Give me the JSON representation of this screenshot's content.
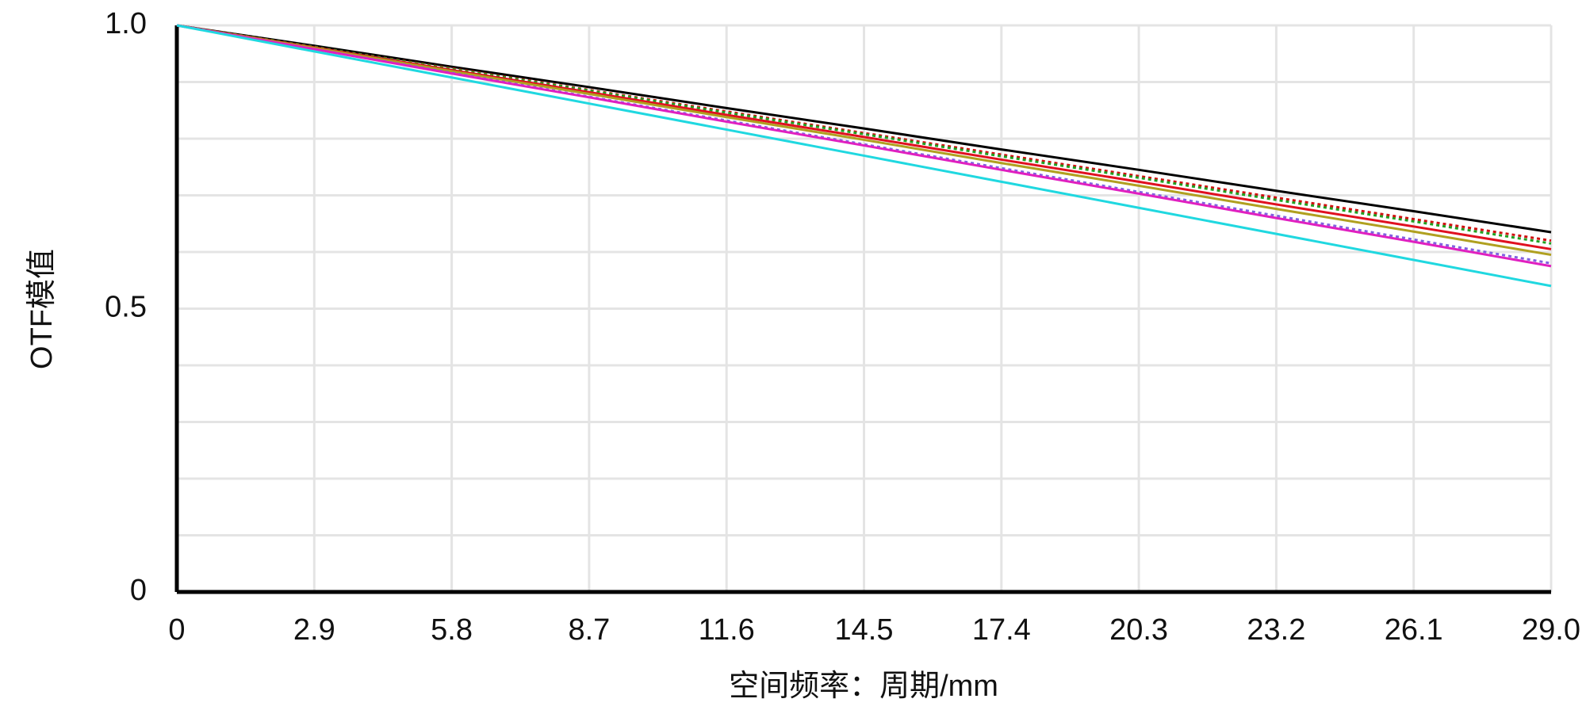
{
  "chart_data": {
    "type": "line",
    "x_label": "空间频率：周期/mm",
    "y_label": "OTF模值",
    "x": [
      0,
      2.9,
      5.8,
      8.7,
      11.6,
      14.5,
      17.4,
      20.3,
      23.2,
      26.1,
      29
    ],
    "series": [
      {
        "color": "#000000",
        "dash": false,
        "values": [
          1,
          0.964,
          0.927,
          0.891,
          0.854,
          0.818,
          0.781,
          0.745,
          0.708,
          0.672,
          0.635
        ]
      },
      {
        "color": "#d01010",
        "dash": true,
        "values": [
          1,
          0.962,
          0.924,
          0.886,
          0.848,
          0.81,
          0.772,
          0.734,
          0.696,
          0.658,
          0.62
        ]
      },
      {
        "color": "#20a020",
        "dash": true,
        "values": [
          1,
          0.962,
          0.923,
          0.885,
          0.846,
          0.808,
          0.769,
          0.731,
          0.692,
          0.654,
          0.615
        ]
      },
      {
        "color": "#e01020",
        "dash": false,
        "values": [
          1,
          0.961,
          0.921,
          0.882,
          0.842,
          0.803,
          0.763,
          0.724,
          0.684,
          0.645,
          0.605
        ]
      },
      {
        "color": "#b0a020",
        "dash": false,
        "values": [
          1,
          0.96,
          0.919,
          0.879,
          0.838,
          0.798,
          0.757,
          0.717,
          0.676,
          0.636,
          0.595
        ]
      },
      {
        "color": "#8060e0",
        "dash": true,
        "values": [
          1,
          0.958,
          0.916,
          0.874,
          0.832,
          0.79,
          0.748,
          0.706,
          0.664,
          0.622,
          0.58
        ]
      },
      {
        "color": "#e020c0",
        "dash": false,
        "values": [
          1,
          0.958,
          0.915,
          0.873,
          0.83,
          0.788,
          0.745,
          0.703,
          0.66,
          0.618,
          0.575
        ]
      },
      {
        "color": "#20d8e0",
        "dash": false,
        "values": [
          1,
          0.954,
          0.908,
          0.862,
          0.816,
          0.77,
          0.724,
          0.678,
          0.632,
          0.586,
          0.54
        ]
      }
    ],
    "xlim": [
      0,
      29
    ],
    "ylim": [
      0,
      1
    ],
    "xticks": [
      0,
      2.9,
      5.8,
      8.7,
      11.6,
      14.5,
      17.4,
      20.3,
      23.2,
      26.1,
      {
        "value": 29,
        "label": "29.0"
      }
    ],
    "yticks": [
      0,
      0.5,
      {
        "value": 1,
        "label": "1.0"
      }
    ],
    "y_minor_ticks": [
      0.1,
      0.2,
      0.3,
      0.4,
      0.6,
      0.7,
      0.8,
      0.9
    ],
    "grid": true
  }
}
